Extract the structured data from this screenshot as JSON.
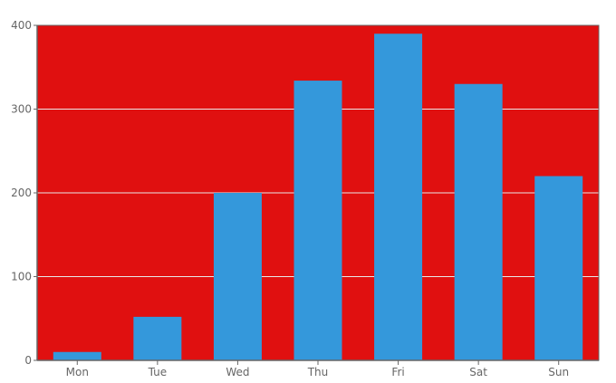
{
  "colors": {
    "plot_background": "#e01010",
    "bar": "#3498db",
    "gridline": "#e8e8e8",
    "axis": "#666666",
    "text": "#666666",
    "page_background": "#ffffff"
  },
  "chart_data": {
    "type": "bar",
    "title": "",
    "xlabel": "",
    "ylabel": "",
    "categories": [
      "Mon",
      "Tue",
      "Wed",
      "Thu",
      "Fri",
      "Sat",
      "Sun"
    ],
    "series": [
      {
        "values": [
          10,
          52,
          200,
          334,
          390,
          330,
          220
        ]
      }
    ],
    "ylim": [
      0,
      400
    ],
    "yticks": [
      0,
      100,
      200,
      300,
      400
    ],
    "grid": true,
    "legend": "none"
  }
}
